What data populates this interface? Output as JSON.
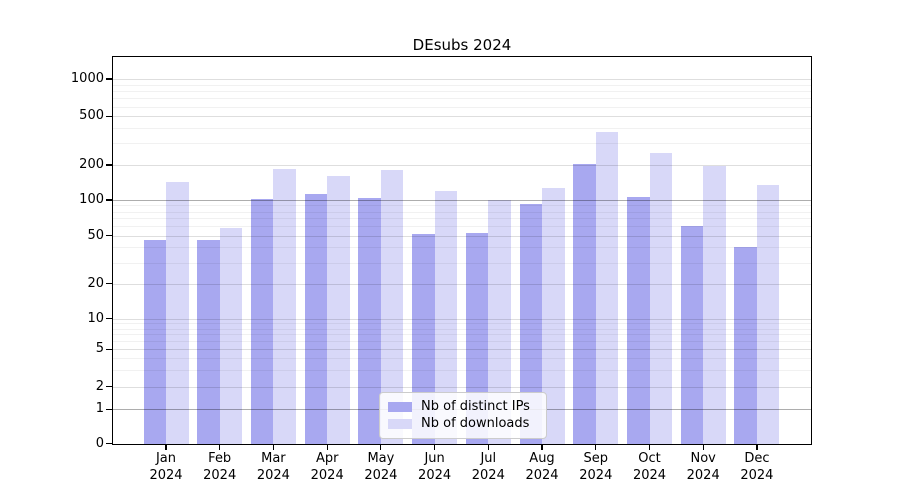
{
  "title": "DEsubs 2024",
  "chart_data": {
    "type": "bar",
    "title": "DEsubs 2024",
    "categories": [
      "Jan",
      "Feb",
      "Mar",
      "Apr",
      "May",
      "Jun",
      "Jul",
      "Aug",
      "Sep",
      "Oct",
      "Nov",
      "Dec"
    ],
    "year": "2024",
    "series": [
      {
        "name": "Nb of distinct IPs",
        "color": "#a8a8f0",
        "values": [
          46,
          46,
          103,
          113,
          104,
          52,
          53,
          93,
          205,
          106,
          60,
          40
        ]
      },
      {
        "name": "Nb of downloads",
        "color": "#d8d8f8",
        "values": [
          143,
          58,
          186,
          162,
          180,
          120,
          100,
          128,
          370,
          250,
          195,
          134
        ]
      }
    ],
    "yscale": "log (linear segment below 1, zero shown)",
    "yticks": [
      0,
      1,
      2,
      5,
      10,
      20,
      50,
      100,
      200,
      500,
      1000
    ],
    "ylim": [
      0,
      1300
    ],
    "xlabel": "",
    "ylabel": "",
    "grid": true,
    "legend_position": "lower center"
  }
}
